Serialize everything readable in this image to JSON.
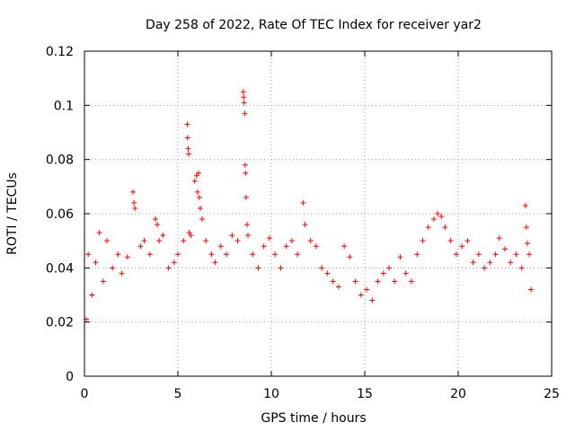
{
  "chart_data": {
    "type": "scatter",
    "title": "Day 258 of 2022, Rate Of TEC Index for receiver yar2",
    "xlabel": "GPS time / hours",
    "ylabel": "ROTI / TECUs",
    "xlim": [
      0,
      25
    ],
    "ylim": [
      0,
      0.12
    ],
    "x_ticks": [
      0,
      5,
      10,
      15,
      20,
      25
    ],
    "x_tick_labels": [
      "0",
      "5",
      "10",
      "15",
      "20",
      "25"
    ],
    "y_ticks": [
      0,
      0.02,
      0.04,
      0.06,
      0.08,
      0.1,
      0.12
    ],
    "y_tick_labels": [
      "0",
      "0.02",
      "0.04",
      "0.06",
      "0.08",
      "0.1",
      "0.12"
    ],
    "grid": true,
    "marker": "+",
    "color": "#ff0000",
    "series": [
      {
        "name": "ROTI",
        "points": [
          [
            0.1,
            0.021
          ],
          [
            0.2,
            0.045
          ],
          [
            0.4,
            0.03
          ],
          [
            0.6,
            0.042
          ],
          [
            0.8,
            0.053
          ],
          [
            1.0,
            0.035
          ],
          [
            1.2,
            0.05
          ],
          [
            1.5,
            0.04
          ],
          [
            1.8,
            0.045
          ],
          [
            2.0,
            0.038
          ],
          [
            2.3,
            0.044
          ],
          [
            2.6,
            0.068
          ],
          [
            2.65,
            0.064
          ],
          [
            2.7,
            0.062
          ],
          [
            3.0,
            0.048
          ],
          [
            3.2,
            0.05
          ],
          [
            3.5,
            0.045
          ],
          [
            3.8,
            0.058
          ],
          [
            3.9,
            0.056
          ],
          [
            4.0,
            0.05
          ],
          [
            4.2,
            0.052
          ],
          [
            4.5,
            0.04
          ],
          [
            4.8,
            0.042
          ],
          [
            5.0,
            0.045
          ],
          [
            5.3,
            0.05
          ],
          [
            5.5,
            0.093
          ],
          [
            5.52,
            0.088
          ],
          [
            5.55,
            0.084
          ],
          [
            5.58,
            0.082
          ],
          [
            5.6,
            0.053
          ],
          [
            5.7,
            0.052
          ],
          [
            5.9,
            0.072
          ],
          [
            6.0,
            0.074
          ],
          [
            6.05,
            0.068
          ],
          [
            6.1,
            0.075
          ],
          [
            6.15,
            0.066
          ],
          [
            6.2,
            0.062
          ],
          [
            6.3,
            0.058
          ],
          [
            6.5,
            0.05
          ],
          [
            6.8,
            0.045
          ],
          [
            7.0,
            0.042
          ],
          [
            7.3,
            0.048
          ],
          [
            7.6,
            0.045
          ],
          [
            7.9,
            0.052
          ],
          [
            8.2,
            0.05
          ],
          [
            8.5,
            0.105
          ],
          [
            8.52,
            0.103
          ],
          [
            8.55,
            0.101
          ],
          [
            8.58,
            0.097
          ],
          [
            8.6,
            0.078
          ],
          [
            8.62,
            0.075
          ],
          [
            8.65,
            0.066
          ],
          [
            8.7,
            0.056
          ],
          [
            8.75,
            0.052
          ],
          [
            9.0,
            0.045
          ],
          [
            9.3,
            0.04
          ],
          [
            9.6,
            0.048
          ],
          [
            9.9,
            0.051
          ],
          [
            10.2,
            0.045
          ],
          [
            10.5,
            0.04
          ],
          [
            10.8,
            0.048
          ],
          [
            11.1,
            0.05
          ],
          [
            11.4,
            0.045
          ],
          [
            11.7,
            0.064
          ],
          [
            11.8,
            0.056
          ],
          [
            12.1,
            0.05
          ],
          [
            12.4,
            0.048
          ],
          [
            12.7,
            0.04
          ],
          [
            13.0,
            0.038
          ],
          [
            13.3,
            0.035
          ],
          [
            13.6,
            0.033
          ],
          [
            13.9,
            0.048
          ],
          [
            14.2,
            0.044
          ],
          [
            14.5,
            0.035
          ],
          [
            14.8,
            0.03
          ],
          [
            15.1,
            0.032
          ],
          [
            15.4,
            0.028
          ],
          [
            15.7,
            0.035
          ],
          [
            16.0,
            0.038
          ],
          [
            16.3,
            0.04
          ],
          [
            16.6,
            0.035
          ],
          [
            16.9,
            0.044
          ],
          [
            17.2,
            0.038
          ],
          [
            17.5,
            0.035
          ],
          [
            17.8,
            0.045
          ],
          [
            18.1,
            0.05
          ],
          [
            18.4,
            0.055
          ],
          [
            18.7,
            0.058
          ],
          [
            18.9,
            0.06
          ],
          [
            19.1,
            0.059
          ],
          [
            19.3,
            0.055
          ],
          [
            19.6,
            0.05
          ],
          [
            19.9,
            0.045
          ],
          [
            20.2,
            0.048
          ],
          [
            20.5,
            0.05
          ],
          [
            20.8,
            0.042
          ],
          [
            21.1,
            0.045
          ],
          [
            21.4,
            0.04
          ],
          [
            21.7,
            0.042
          ],
          [
            22.0,
            0.045
          ],
          [
            22.2,
            0.051
          ],
          [
            22.5,
            0.047
          ],
          [
            22.8,
            0.042
          ],
          [
            23.1,
            0.045
          ],
          [
            23.4,
            0.04
          ],
          [
            23.6,
            0.063
          ],
          [
            23.65,
            0.055
          ],
          [
            23.7,
            0.049
          ],
          [
            23.8,
            0.045
          ],
          [
            23.9,
            0.032
          ]
        ]
      }
    ]
  }
}
